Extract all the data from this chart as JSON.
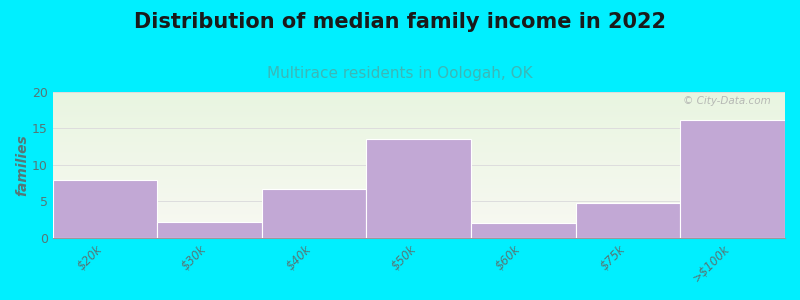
{
  "title": "Distribution of median family income in 2022",
  "subtitle": "Multirace residents in Oologah, OK",
  "categories": [
    "$20k",
    "$30k",
    "$40k",
    "$50k",
    "$60k",
    "$75k",
    ">$100k"
  ],
  "values": [
    8,
    2.2,
    6.7,
    13.5,
    2,
    4.8,
    16.2
  ],
  "bar_color": "#c2a8d5",
  "bar_edge_color": "#c2a8d5",
  "background_outer": "#00efff",
  "bg_top_color": "#e8f5e0",
  "bg_bottom_color": "#f8f8f2",
  "title_color": "#1a1a1a",
  "subtitle_color": "#3ab8b8",
  "ylabel": "families",
  "ylabel_color": "#557777",
  "tick_color": "#557777",
  "ylim": [
    0,
    20
  ],
  "yticks": [
    0,
    5,
    10,
    15,
    20
  ],
  "grid_color": "#dddddd",
  "watermark": "© City-Data.com",
  "title_fontsize": 15,
  "subtitle_fontsize": 11,
  "ylabel_fontsize": 10
}
